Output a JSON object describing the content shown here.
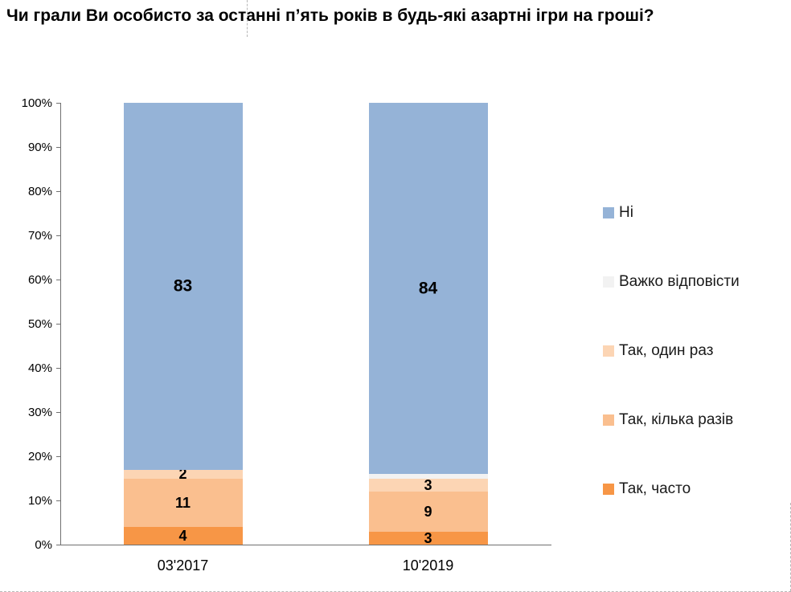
{
  "title": "Чи грали Ви особисто за останні п’ять років в будь-які азартні ігри на гроші?",
  "chart_data": {
    "type": "bar",
    "stacked": true,
    "title": "Чи грали Ви особисто за останні п’ять років в будь-які азартні ігри на гроші?",
    "categories": [
      "03'2017",
      "10'2019"
    ],
    "series": [
      {
        "name": "Так, часто",
        "color": "#F79646",
        "values": [
          4,
          3
        ],
        "show_labels": true,
        "label_size": "normal"
      },
      {
        "name": "Так, кілька разів",
        "color": "#FABF8F",
        "values": [
          11,
          9
        ],
        "show_labels": true,
        "label_size": "normal"
      },
      {
        "name": "Так, один раз",
        "color": "#FCD5B4",
        "values": [
          2,
          3
        ],
        "show_labels": true,
        "label_size": "normal"
      },
      {
        "name": "Важко відповісти",
        "color": "#F2F2F2",
        "values": [
          0,
          1
        ],
        "show_labels": false,
        "label_size": "normal"
      },
      {
        "name": "Ні",
        "color": "#95B3D7",
        "values": [
          83,
          84
        ],
        "show_labels": true,
        "label_size": "large"
      }
    ],
    "xlabel": "",
    "ylabel": "",
    "ylim": [
      0,
      100
    ],
    "yticks": [
      "0%",
      "10%",
      "20%",
      "30%",
      "40%",
      "50%",
      "60%",
      "70%",
      "80%",
      "90%",
      "100%"
    ],
    "grid": false,
    "legend_position": "right",
    "legend_order": [
      "Ні",
      "Важко відповісти",
      "Так, один раз",
      "Так, кілька разів",
      "Так, часто"
    ]
  }
}
